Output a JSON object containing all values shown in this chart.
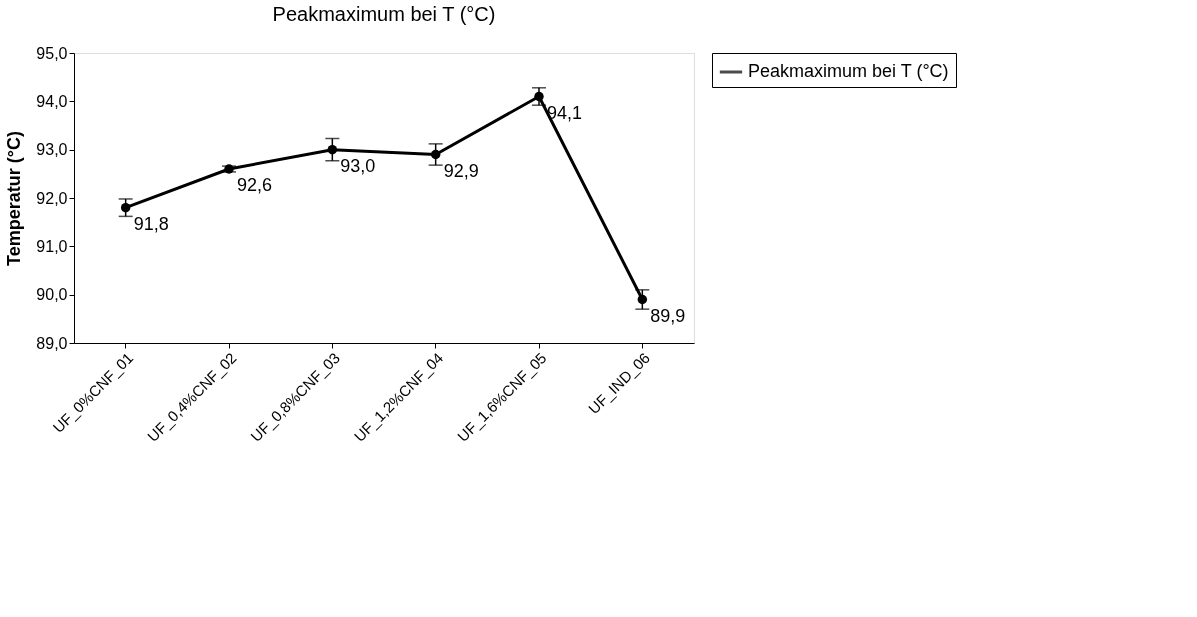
{
  "chart_data": {
    "type": "line",
    "title": "Peakmaximum bei T (°C)",
    "ylabel": "Temperatur (°C)",
    "categories": [
      "UF_0%CNF_01",
      "UF_0,4%CNF_02",
      "UF_0,8%CNF_03",
      "UF_1,2%CNF_04",
      "UF_1,6%CNF_05",
      "UF_IND_06"
    ],
    "series": [
      {
        "name": "Peakmaximum bei T (°C)",
        "color": "#000000",
        "values": [
          91.8,
          92.6,
          93.0,
          92.9,
          94.1,
          89.9
        ],
        "errors": [
          0.18,
          0.06,
          0.23,
          0.22,
          0.18,
          0.2
        ],
        "value_labels": [
          "91,8",
          "92,6",
          "93,0",
          "92,9",
          "94,1",
          "89,9"
        ]
      }
    ],
    "ylim": [
      89,
      95
    ],
    "yticks": [
      {
        "value": 89,
        "label": "89,0"
      },
      {
        "value": 90,
        "label": "90,0"
      },
      {
        "value": 91,
        "label": "91,0"
      },
      {
        "value": 92,
        "label": "92,0"
      },
      {
        "value": 93,
        "label": "93,0"
      },
      {
        "value": 94,
        "label": "94,0"
      },
      {
        "value": 95,
        "label": "95,0"
      }
    ],
    "grid": false,
    "legend": "right",
    "marker": "circle",
    "line_style": "solid"
  }
}
